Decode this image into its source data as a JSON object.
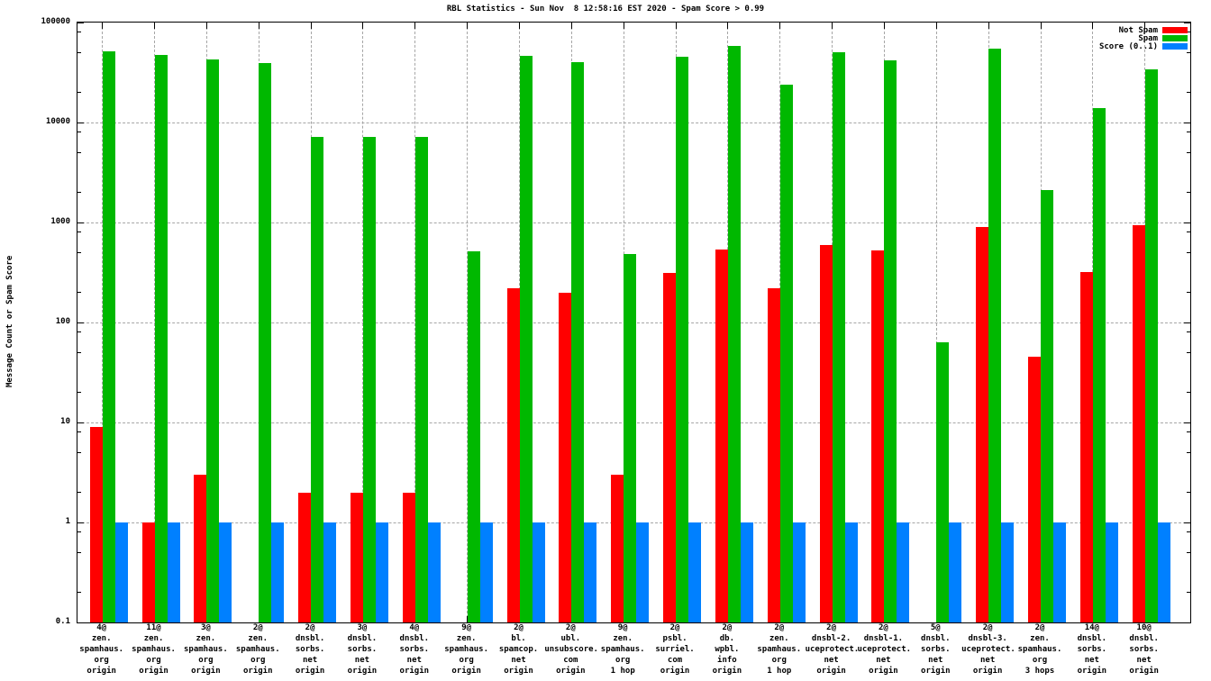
{
  "chart_data": {
    "type": "bar",
    "title": "RBL Statistics - Sun Nov  8 12:58:16 EST 2020 - Spam Score > 0.99",
    "ylabel": "Message Count or Spam Score",
    "scale": "log10",
    "ylim": [
      0.1,
      100000
    ],
    "y_tick_values": [
      100000,
      10000,
      1000,
      100,
      10,
      1,
      0.1
    ],
    "y_tick_labels": [
      "100000",
      "10000",
      "1000",
      "100",
      "10",
      "1",
      "0.1"
    ],
    "y_minor_multipliers": [
      2,
      5,
      8
    ],
    "grid": true,
    "legend_position": "top-right",
    "colors": {
      "not_spam": "#ff0000",
      "spam": "#00b800",
      "score": "#0080ff",
      "grid": "#a6a6a6",
      "axis": "#000000",
      "background": "#ffffff"
    },
    "categories": [
      [
        "4@",
        "zen.",
        "spamhaus.",
        "org",
        "origin"
      ],
      [
        "11@",
        "zen.",
        "spamhaus.",
        "org",
        "origin"
      ],
      [
        "3@",
        "zen.",
        "spamhaus.",
        "org",
        "origin"
      ],
      [
        "2@",
        "zen.",
        "spamhaus.",
        "org",
        "origin"
      ],
      [
        "2@",
        "dnsbl.",
        "sorbs.",
        "net",
        "origin"
      ],
      [
        "3@",
        "dnsbl.",
        "sorbs.",
        "net",
        "origin"
      ],
      [
        "4@",
        "dnsbl.",
        "sorbs.",
        "net",
        "origin"
      ],
      [
        "9@",
        "zen.",
        "spamhaus.",
        "org",
        "origin"
      ],
      [
        "2@",
        "bl.",
        "spamcop.",
        "net",
        "origin"
      ],
      [
        "2@",
        "ubl.",
        "unsubscore.",
        "com",
        "origin"
      ],
      [
        "9@",
        "zen.",
        "spamhaus.",
        "org",
        "1 hop"
      ],
      [
        "2@",
        "psbl.",
        "surriel.",
        "com",
        "origin"
      ],
      [
        "2@",
        "db.",
        "wpbl.",
        "info",
        "origin"
      ],
      [
        "2@",
        "zen.",
        "spamhaus.",
        "org",
        "1 hop"
      ],
      [
        "2@",
        "dnsbl-2.",
        "uceprotect.",
        "net",
        "origin"
      ],
      [
        "2@",
        "dnsbl-1.",
        "uceprotect.",
        "net",
        "origin"
      ],
      [
        "5@",
        "dnsbl.",
        "sorbs.",
        "net",
        "origin"
      ],
      [
        "2@",
        "dnsbl-3.",
        "uceprotect.",
        "net",
        "origin"
      ],
      [
        "2@",
        "zen.",
        "spamhaus.",
        "org",
        "3 hops"
      ],
      [
        "14@",
        "dnsbl.",
        "sorbs.",
        "net",
        "origin"
      ],
      [
        "10@",
        "dnsbl.",
        "sorbs.",
        "net",
        "origin"
      ]
    ],
    "series": [
      {
        "name": "Not Spam",
        "color": "#ff0000",
        "values": [
          9,
          1,
          3,
          0,
          2,
          2,
          2,
          0,
          220,
          200,
          3,
          310,
          540,
          220,
          600,
          530,
          0,
          900,
          45,
          320,
          940
        ]
      },
      {
        "name": "Spam",
        "color": "#00b800",
        "values": [
          51000,
          47000,
          43000,
          39000,
          7200,
          7200,
          7200,
          510,
          46000,
          40000,
          480,
          45000,
          58000,
          24000,
          50000,
          42000,
          63,
          55000,
          2100,
          14000,
          34000
        ]
      },
      {
        "name": "Score (0..1)",
        "color": "#0080ff",
        "values": [
          1,
          1,
          1,
          1,
          1,
          1,
          1,
          1,
          1,
          1,
          1,
          1,
          1,
          1,
          1,
          1,
          1,
          1,
          1,
          1,
          1
        ]
      }
    ]
  }
}
